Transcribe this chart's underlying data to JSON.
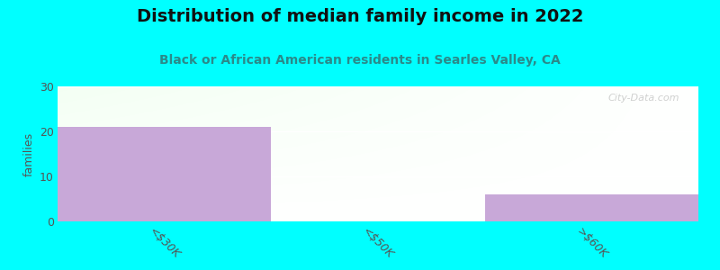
{
  "title": "Distribution of median family income in 2022",
  "subtitle": "Black or African American residents in Searles Valley, CA",
  "categories": [
    "<$30K",
    "<$50K",
    ">$60K"
  ],
  "values": [
    21,
    0,
    6
  ],
  "bar_color": "#C8A8D8",
  "bar_alpha": 1.0,
  "ylabel": "families",
  "ylim": [
    0,
    30
  ],
  "yticks": [
    0,
    10,
    20,
    30
  ],
  "background_color": "#00FFFF",
  "title_fontsize": 14,
  "subtitle_fontsize": 10,
  "title_color": "#111111",
  "subtitle_color": "#2a8a8a",
  "watermark": "City-Data.com",
  "bar_width": 1.0
}
